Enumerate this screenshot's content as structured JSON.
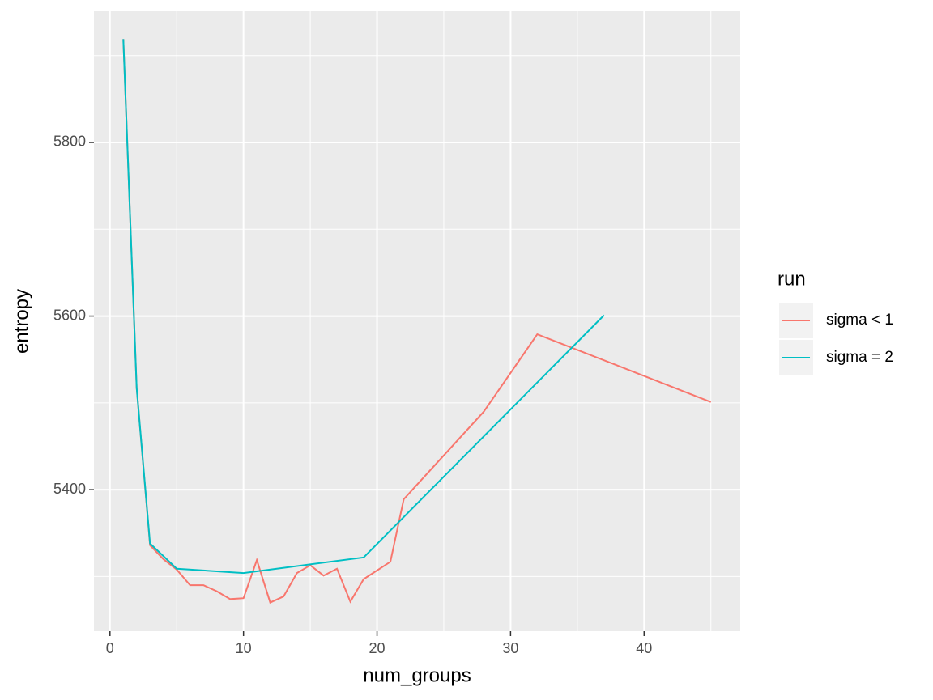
{
  "chart_data": {
    "type": "line",
    "x_label": "num_groups",
    "y_label": "entropy",
    "xlim": [
      -1.2,
      47.2
    ],
    "xticks": [
      0,
      10,
      20,
      30,
      40
    ],
    "x_minor_ticks": [
      5,
      15,
      25,
      35,
      45
    ],
    "ylim": [
      5237,
      5951
    ],
    "yticks": [
      5400,
      5600,
      5800
    ],
    "y_minor_ticks": [
      5300,
      5500,
      5700,
      5900
    ],
    "grid": true,
    "legend_title": "run",
    "legend_position": "right",
    "series": [
      {
        "name": "sigma < 1",
        "color": "#F8766D",
        "x": [
          1,
          2,
          3,
          4,
          5,
          6,
          7,
          8,
          9,
          10,
          11,
          12,
          13,
          14,
          15,
          16,
          17,
          18,
          19,
          21,
          22,
          28,
          32,
          45
        ],
        "values": [
          5919,
          5517,
          5336,
          5320,
          5308,
          5290,
          5290,
          5283,
          5274,
          5275,
          5319,
          5270,
          5277,
          5304,
          5313,
          5301,
          5309,
          5271,
          5297,
          5317,
          5389,
          5490,
          5579,
          5501
        ]
      },
      {
        "name": "sigma = 2",
        "color": "#00BFC4",
        "x": [
          1,
          2,
          3,
          5,
          10,
          19,
          37
        ],
        "values": [
          5919,
          5517,
          5338,
          5309,
          5304,
          5322,
          5601
        ]
      }
    ]
  }
}
